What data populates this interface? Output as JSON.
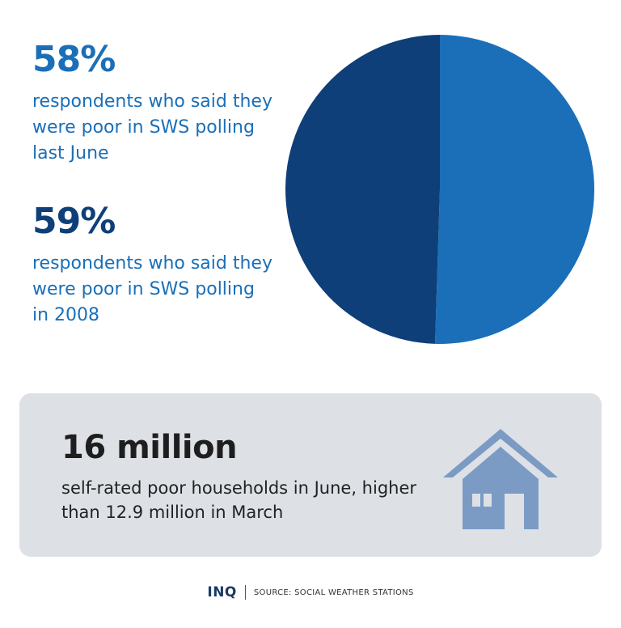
{
  "stats": [
    {
      "value": "58%",
      "description": "respondents who said they were poor in SWS polling last June"
    },
    {
      "value": "59%",
      "description": "respondents who said they were poor in SWS polling in 2008"
    }
  ],
  "chart_data": {
    "type": "pie",
    "title": "",
    "slices": [
      {
        "label": "right half",
        "value": 50.5,
        "color": "#1a6fb8"
      },
      {
        "label": "left half",
        "value": 49.5,
        "color": "#0e3f78"
      }
    ]
  },
  "panel": {
    "value": "16 million",
    "description": "self-rated poor households in June, higher than 12.9 million in March"
  },
  "footer": {
    "logo": "INQ",
    "source": "SOURCE: SOCIAL WEATHER STATIONS"
  },
  "colors": {
    "light_blue": "#1a6fb8",
    "dark_blue": "#0e3f78",
    "panel_bg": "#dde1e6",
    "house": "#7b9bc4"
  }
}
